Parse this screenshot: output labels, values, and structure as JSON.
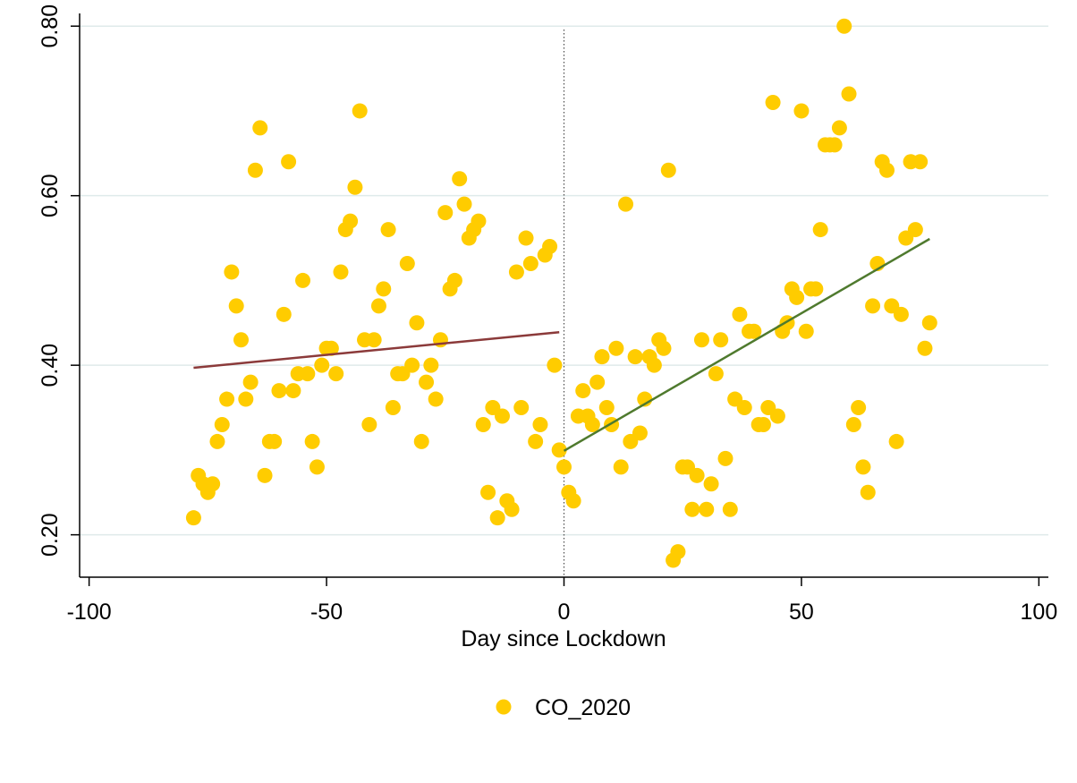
{
  "chart_data": {
    "type": "scatter",
    "title": "",
    "xlabel": "Day since Lockdown",
    "ylabel": "",
    "xlim": [
      -102,
      102
    ],
    "ylim": [
      0.15,
      0.815
    ],
    "xticks": [
      -100,
      -50,
      0,
      50,
      100
    ],
    "xtick_labels": [
      "-100",
      "-50",
      "0",
      "50",
      "100"
    ],
    "yticks": [
      0.2,
      0.4,
      0.6,
      0.8
    ],
    "ytick_labels": [
      "0.20",
      "0.40",
      "0.60",
      "0.80"
    ],
    "grid": "horizontal",
    "legend_position": "bottom",
    "lockdown_line_x": 0,
    "colors": {
      "points": "#ffcc00",
      "fit_before": "#8b3a3a",
      "fit_after": "#4f7a2e",
      "grid": "#dfeaea",
      "vline": "#555555"
    },
    "series": [
      {
        "name": "CO_2020",
        "points": [
          [
            -78,
            0.22
          ],
          [
            -77,
            0.27
          ],
          [
            -76,
            0.26
          ],
          [
            -75,
            0.25
          ],
          [
            -74,
            0.26
          ],
          [
            -73,
            0.31
          ],
          [
            -72,
            0.33
          ],
          [
            -71,
            0.36
          ],
          [
            -70,
            0.51
          ],
          [
            -69,
            0.47
          ],
          [
            -68,
            0.43
          ],
          [
            -67,
            0.36
          ],
          [
            -66,
            0.38
          ],
          [
            -65,
            0.63
          ],
          [
            -64,
            0.68
          ],
          [
            -63,
            0.27
          ],
          [
            -62,
            0.31
          ],
          [
            -61,
            0.31
          ],
          [
            -60,
            0.37
          ],
          [
            -59,
            0.46
          ],
          [
            -58,
            0.64
          ],
          [
            -57,
            0.37
          ],
          [
            -56,
            0.39
          ],
          [
            -55,
            0.5
          ],
          [
            -54,
            0.39
          ],
          [
            -53,
            0.31
          ],
          [
            -52,
            0.28
          ],
          [
            -51,
            0.4
          ],
          [
            -50,
            0.42
          ],
          [
            -49,
            0.42
          ],
          [
            -48,
            0.39
          ],
          [
            -47,
            0.51
          ],
          [
            -46,
            0.56
          ],
          [
            -45,
            0.57
          ],
          [
            -44,
            0.61
          ],
          [
            -43,
            0.7
          ],
          [
            -42,
            0.43
          ],
          [
            -41,
            0.33
          ],
          [
            -40,
            0.43
          ],
          [
            -39,
            0.47
          ],
          [
            -38,
            0.49
          ],
          [
            -37,
            0.56
          ],
          [
            -36,
            0.35
          ],
          [
            -35,
            0.39
          ],
          [
            -34,
            0.39
          ],
          [
            -33,
            0.52
          ],
          [
            -32,
            0.4
          ],
          [
            -31,
            0.45
          ],
          [
            -30,
            0.31
          ],
          [
            -29,
            0.38
          ],
          [
            -28,
            0.4
          ],
          [
            -27,
            0.36
          ],
          [
            -26,
            0.43
          ],
          [
            -25,
            0.58
          ],
          [
            -24,
            0.49
          ],
          [
            -23,
            0.5
          ],
          [
            -22,
            0.62
          ],
          [
            -21,
            0.59
          ],
          [
            -20,
            0.55
          ],
          [
            -19,
            0.56
          ],
          [
            -18,
            0.57
          ],
          [
            -17,
            0.33
          ],
          [
            -16,
            0.25
          ],
          [
            -15,
            0.35
          ],
          [
            -14,
            0.22
          ],
          [
            -13,
            0.34
          ],
          [
            -12,
            0.24
          ],
          [
            -11,
            0.23
          ],
          [
            -10,
            0.51
          ],
          [
            -9,
            0.35
          ],
          [
            -8,
            0.55
          ],
          [
            -7,
            0.52
          ],
          [
            -6,
            0.31
          ],
          [
            -5,
            0.33
          ],
          [
            -4,
            0.53
          ],
          [
            -3,
            0.54
          ],
          [
            -2,
            0.4
          ],
          [
            -1,
            0.3
          ],
          [
            0,
            0.28
          ],
          [
            1,
            0.25
          ],
          [
            2,
            0.24
          ],
          [
            3,
            0.34
          ],
          [
            4,
            0.37
          ],
          [
            5,
            0.34
          ],
          [
            6,
            0.33
          ],
          [
            7,
            0.38
          ],
          [
            8,
            0.41
          ],
          [
            9,
            0.35
          ],
          [
            10,
            0.33
          ],
          [
            11,
            0.42
          ],
          [
            12,
            0.28
          ],
          [
            13,
            0.59
          ],
          [
            14,
            0.31
          ],
          [
            15,
            0.41
          ],
          [
            16,
            0.32
          ],
          [
            17,
            0.36
          ],
          [
            18,
            0.41
          ],
          [
            19,
            0.4
          ],
          [
            20,
            0.43
          ],
          [
            21,
            0.42
          ],
          [
            22,
            0.63
          ],
          [
            23,
            0.17
          ],
          [
            24,
            0.18
          ],
          [
            25,
            0.28
          ],
          [
            26,
            0.28
          ],
          [
            27,
            0.23
          ],
          [
            28,
            0.27
          ],
          [
            29,
            0.43
          ],
          [
            30,
            0.23
          ],
          [
            31,
            0.26
          ],
          [
            32,
            0.39
          ],
          [
            33,
            0.43
          ],
          [
            34,
            0.29
          ],
          [
            35,
            0.23
          ],
          [
            36,
            0.36
          ],
          [
            37,
            0.46
          ],
          [
            38,
            0.35
          ],
          [
            39,
            0.44
          ],
          [
            40,
            0.44
          ],
          [
            41,
            0.33
          ],
          [
            42,
            0.33
          ],
          [
            43,
            0.35
          ],
          [
            44,
            0.71
          ],
          [
            45,
            0.34
          ],
          [
            46,
            0.44
          ],
          [
            47,
            0.45
          ],
          [
            48,
            0.49
          ],
          [
            49,
            0.48
          ],
          [
            50,
            0.7
          ],
          [
            51,
            0.44
          ],
          [
            52,
            0.49
          ],
          [
            53,
            0.49
          ],
          [
            54,
            0.56
          ],
          [
            55,
            0.66
          ],
          [
            56,
            0.66
          ],
          [
            57,
            0.66
          ],
          [
            58,
            0.68
          ],
          [
            59,
            0.8
          ],
          [
            60,
            0.72
          ],
          [
            61,
            0.33
          ],
          [
            62,
            0.35
          ],
          [
            63,
            0.28
          ],
          [
            64,
            0.25
          ],
          [
            65,
            0.47
          ],
          [
            66,
            0.52
          ],
          [
            67,
            0.64
          ],
          [
            68,
            0.63
          ],
          [
            69,
            0.47
          ],
          [
            70,
            0.31
          ],
          [
            71,
            0.46
          ],
          [
            72,
            0.55
          ],
          [
            73,
            0.64
          ],
          [
            74,
            0.56
          ],
          [
            75,
            0.64
          ],
          [
            76,
            0.42
          ],
          [
            77,
            0.45
          ]
        ]
      }
    ],
    "fit_lines": [
      {
        "x": [
          -78,
          -1
        ],
        "y": [
          0.397,
          0.439
        ]
      },
      {
        "x": [
          0,
          77
        ],
        "y": [
          0.299,
          0.549
        ]
      }
    ],
    "legend": [
      {
        "label": "CO_2020"
      }
    ]
  }
}
